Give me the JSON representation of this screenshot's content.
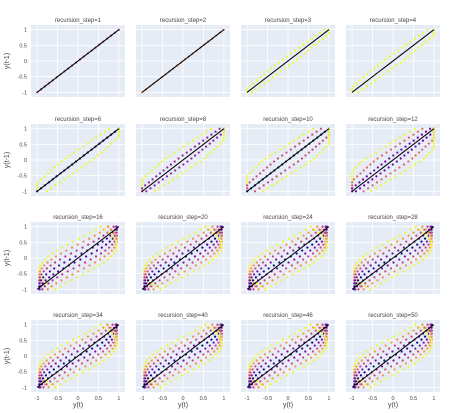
{
  "chart_data": {
    "type": "scatter",
    "layout": "facet-grid",
    "grid": true,
    "xlabel": "y(t)",
    "ylabel": "y(t-1)",
    "xlim": [
      -1.15,
      1.15
    ],
    "ylim": [
      -1.15,
      1.15
    ],
    "x_ticks": [
      "-1",
      "-0.5",
      "0",
      "0.5",
      "1"
    ],
    "y_ticks": [
      "-1",
      "-0.5",
      "0",
      "0.5",
      "1"
    ],
    "x_tick_values": [
      -1,
      -0.5,
      0,
      0.5,
      1
    ],
    "y_tick_values": [
      -1,
      -0.5,
      0,
      0.5,
      1
    ],
    "reference_line": {
      "x": [
        -1,
        1
      ],
      "y": [
        -1,
        1
      ],
      "color": "#000000"
    },
    "colorscale": [
      "#0d0887",
      "#6a00a8",
      "#b12a90",
      "#e16462",
      "#fca636",
      "#f0f921"
    ],
    "panel_background": "#e5ecf6",
    "facets": [
      {
        "title": "recursion_step=1",
        "recursion_step": 1
      },
      {
        "title": "recursion_step=2",
        "recursion_step": 2
      },
      {
        "title": "recursion_step=3",
        "recursion_step": 3
      },
      {
        "title": "recursion_step=4",
        "recursion_step": 4
      },
      {
        "title": "recursion_step=6",
        "recursion_step": 6
      },
      {
        "title": "recursion_step=8",
        "recursion_step": 8
      },
      {
        "title": "recursion_step=10",
        "recursion_step": 10
      },
      {
        "title": "recursion_step=12",
        "recursion_step": 12
      },
      {
        "title": "recursion_step=16",
        "recursion_step": 16
      },
      {
        "title": "recursion_step=20",
        "recursion_step": 20
      },
      {
        "title": "recursion_step=24",
        "recursion_step": 24
      },
      {
        "title": "recursion_step=28",
        "recursion_step": 28
      },
      {
        "title": "recursion_step=34",
        "recursion_step": 34
      },
      {
        "title": "recursion_step=40",
        "recursion_step": 40
      },
      {
        "title": "recursion_step=46",
        "recursion_step": 46
      },
      {
        "title": "recursion_step=50",
        "recursion_step": 50
      }
    ]
  }
}
